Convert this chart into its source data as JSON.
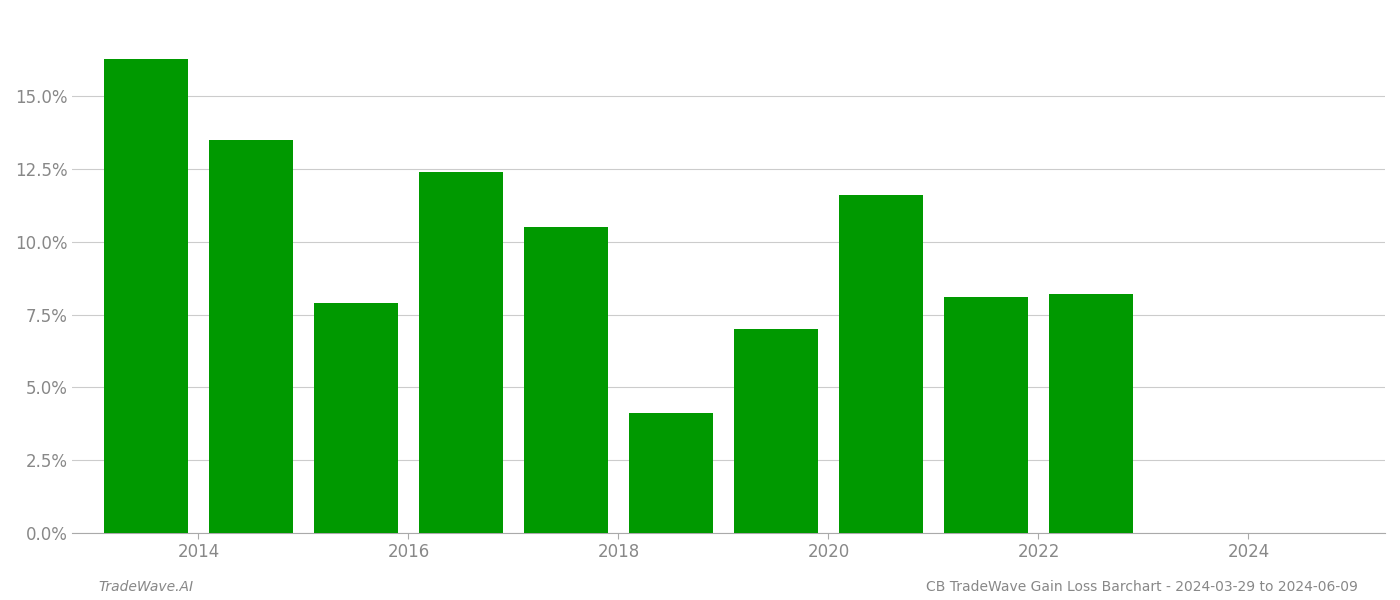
{
  "years": [
    2013,
    2014,
    2015,
    2016,
    2017,
    2018,
    2019,
    2020,
    2021,
    2022
  ],
  "values": [
    0.163,
    0.135,
    0.079,
    0.124,
    0.105,
    0.041,
    0.07,
    0.116,
    0.081,
    0.082
  ],
  "bar_color": "#009900",
  "background_color": "#ffffff",
  "grid_color": "#cccccc",
  "axis_color": "#aaaaaa",
  "tick_color": "#888888",
  "ylabel": "",
  "footer_left": "TradeWave.AI",
  "footer_right": "CB TradeWave Gain Loss Barchart - 2024-03-29 to 2024-06-09",
  "ytick_labels": [
    "0.0%",
    "2.5%",
    "5.0%",
    "7.5%",
    "10.0%",
    "12.5%",
    "15.0%"
  ],
  "ytick_values": [
    0.0,
    0.025,
    0.05,
    0.075,
    0.1,
    0.125,
    0.15
  ],
  "xlim": [
    2012.3,
    2024.8
  ],
  "ylim": [
    0.0,
    0.178
  ],
  "xtick_values": [
    2013.5,
    2015.5,
    2017.5,
    2019.5,
    2021.5,
    2023.5
  ],
  "xtick_labels": [
    "2014",
    "2016",
    "2018",
    "2020",
    "2022",
    "2024"
  ],
  "bar_width": 0.8,
  "figsize": [
    14.0,
    6.0
  ],
  "dpi": 100
}
